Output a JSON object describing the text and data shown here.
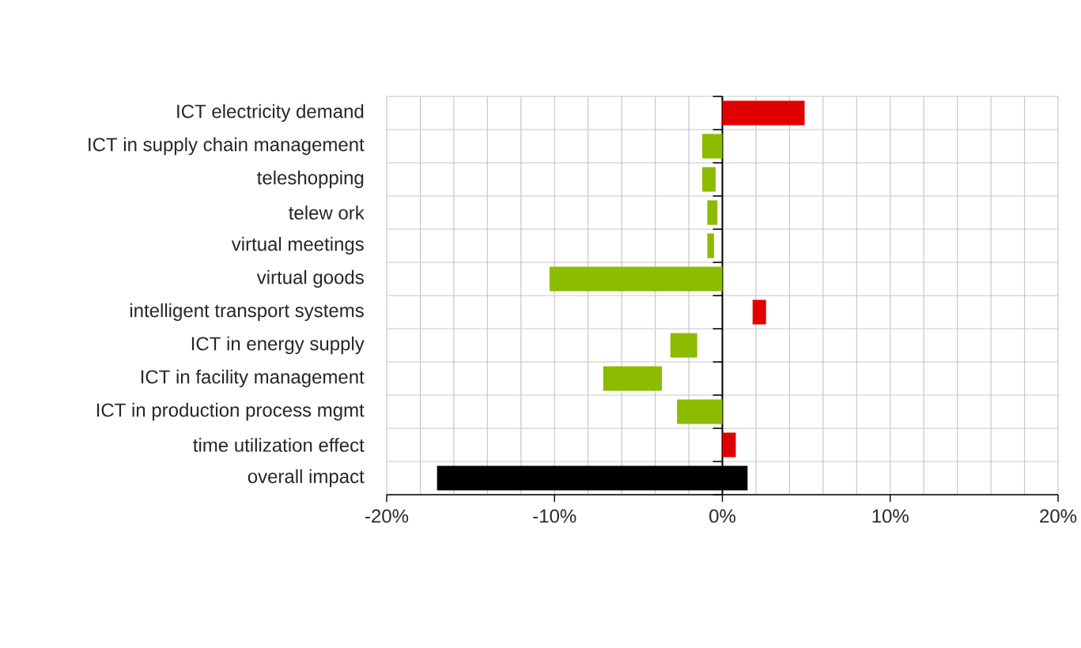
{
  "chart_data": {
    "type": "bar",
    "orientation": "horizontal",
    "categories": [
      "ICT electricity demand",
      "ICT in supply chain management",
      "teleshopping",
      "telew ork",
      "virtual meetings",
      "virtual goods",
      "intelligent transport systems",
      "ICT in energy supply",
      "ICT in facility management",
      "ICT in production process mgmt",
      "time utilization effect",
      "overall impact"
    ],
    "base": [
      0,
      0,
      -1.2,
      -0.9,
      -0.9,
      0,
      1.8,
      -3.1,
      -7.1,
      0,
      0,
      -17.0
    ],
    "values": [
      4.9,
      -1.2,
      0.8,
      0.6,
      0.4,
      -10.3,
      0.8,
      1.6,
      3.5,
      -2.7,
      0.8,
      18.5
    ],
    "colors": [
      "#e00000",
      "#8cbc00",
      "#8cbc00",
      "#8cbc00",
      "#8cbc00",
      "#8cbc00",
      "#e00000",
      "#8cbc00",
      "#8cbc00",
      "#8cbc00",
      "#e00000",
      "#000000"
    ],
    "xlim": [
      -20,
      20
    ],
    "xticks": [
      {
        "value": -20,
        "label": "-20%"
      },
      {
        "value": -18,
        "label": null
      },
      {
        "value": -16,
        "label": null
      },
      {
        "value": -14,
        "label": null
      },
      {
        "value": -12,
        "label": null
      },
      {
        "value": -10,
        "label": "-10%"
      },
      {
        "value": -8,
        "label": null
      },
      {
        "value": -6,
        "label": null
      },
      {
        "value": -4,
        "label": null
      },
      {
        "value": -2,
        "label": null
      },
      {
        "value": 0,
        "label": "0%"
      },
      {
        "value": 2,
        "label": null
      },
      {
        "value": 4,
        "label": null
      },
      {
        "value": 6,
        "label": null
      },
      {
        "value": 8,
        "label": null
      },
      {
        "value": 10,
        "label": "10%"
      },
      {
        "value": 12,
        "label": null
      },
      {
        "value": 14,
        "label": null
      },
      {
        "value": 16,
        "label": null
      },
      {
        "value": 18,
        "label": null
      },
      {
        "value": 20,
        "label": "20%"
      }
    ],
    "grid": true
  }
}
